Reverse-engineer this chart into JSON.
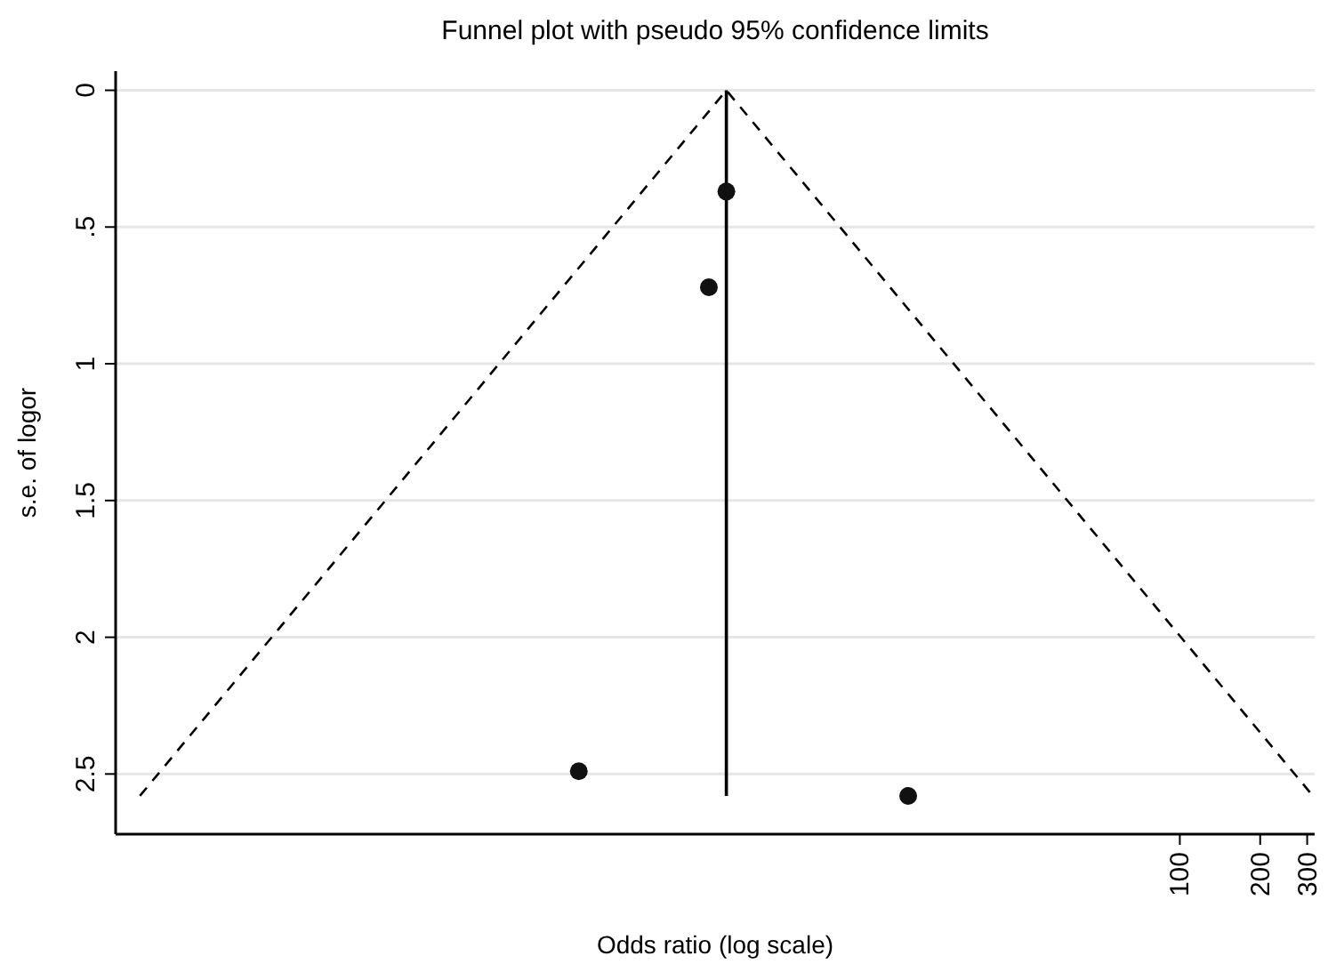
{
  "chart_data": {
    "type": "scatter",
    "title": "Funnel plot with pseudo 95% confidence limits",
    "xlabel": "Odds ratio (log scale)",
    "ylabel": "s.e. of logor",
    "log": "x",
    "grid": "y",
    "xlim": [
      0.0103,
      320
    ],
    "xticks": [
      100,
      200,
      300
    ],
    "ylim": [
      2.72,
      -0.07
    ],
    "yticks": [
      0,
      {
        "value": 0.5,
        "label": ".5"
      },
      1,
      1.5,
      2,
      2.5
    ],
    "series": [
      {
        "type": "line",
        "color": "#000000",
        "line_style": "dashed",
        "x": [
          0.0127,
          2,
          315
        ],
        "values": [
          2.58,
          0,
          2.58
        ]
      },
      {
        "type": "line",
        "color": "#000000",
        "line_style": "solid",
        "x": [
          2,
          2
        ],
        "values": [
          0,
          2.58
        ]
      },
      {
        "color": "#111111",
        "marker": "circle",
        "x": [
          2,
          1.72,
          0.56,
          9.6
        ],
        "values": [
          0.37,
          0.72,
          2.49,
          2.58
        ]
      }
    ]
  }
}
